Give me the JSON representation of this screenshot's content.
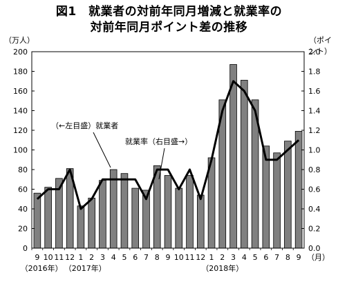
{
  "title_line1": "図1　就業者の対前年同月増減と就業率の",
  "title_line2": "対前年同月ポイント差の推移",
  "left_unit": "（万人）",
  "right_unit": "（ポイント）",
  "month_unit": "（月）",
  "year_labels": [
    "（2016年）",
    "（2017年）",
    "（2018年）"
  ],
  "annotation_employed": "（←左目盛）就業者",
  "annotation_rate": "就業率（右目盛→）",
  "chart_data": {
    "type": "bar",
    "title": "図1　就業者の対前年同月増減と就業率の対前年同月ポイント差の推移",
    "categories": [
      "9",
      "10",
      "11",
      "12",
      "1",
      "2",
      "3",
      "4",
      "5",
      "6",
      "7",
      "8",
      "9",
      "10",
      "11",
      "12",
      "1",
      "2",
      "3",
      "4",
      "5",
      "6",
      "7",
      "8",
      "9"
    ],
    "series": [
      {
        "name": "就業者",
        "type": "bar",
        "axis": "left",
        "values": [
          56,
          62,
          71,
          81,
          43,
          51,
          69,
          80,
          76,
          61,
          59,
          84,
          74,
          61,
          74,
          54,
          92,
          151,
          187,
          171,
          151,
          104,
          97,
          109,
          119
        ]
      },
      {
        "name": "就業率",
        "type": "line",
        "axis": "right",
        "values": [
          0.5,
          0.6,
          0.6,
          0.8,
          0.4,
          0.5,
          0.7,
          0.7,
          0.7,
          0.7,
          0.5,
          0.8,
          0.8,
          0.6,
          0.8,
          0.5,
          0.9,
          1.4,
          1.7,
          1.6,
          1.4,
          0.9,
          0.9,
          1.0,
          1.1
        ]
      }
    ],
    "y_left": {
      "unit": "万人",
      "range": [
        0,
        200
      ],
      "ticks": [
        0,
        20,
        40,
        60,
        80,
        100,
        120,
        140,
        160,
        180,
        200
      ]
    },
    "y_right": {
      "unit": "ポイント",
      "range": [
        0.0,
        2.0
      ],
      "ticks": [
        "0.0",
        "0.2",
        "0.4",
        "0.6",
        "0.8",
        "1.0",
        "1.2",
        "1.4",
        "1.6",
        "1.8",
        "2.0"
      ]
    },
    "grid": false,
    "bar_color": "#808080",
    "line_color": "#000000"
  }
}
